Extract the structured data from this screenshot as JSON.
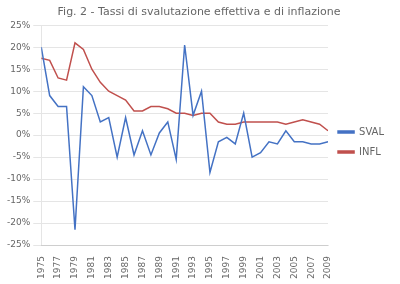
{
  "chart_data": {
    "type": "line",
    "title": "Fig. 2 - Tassi di svalutazione effettiva e di inflazione",
    "x": [
      1975,
      1976,
      1977,
      1978,
      1979,
      1980,
      1981,
      1982,
      1983,
      1984,
      1985,
      1986,
      1987,
      1988,
      1989,
      1990,
      1991,
      1992,
      1993,
      1994,
      1995,
      1996,
      1997,
      1998,
      1999,
      2000,
      2001,
      2002,
      2003,
      2004,
      2005,
      2006,
      2007,
      2008,
      2009
    ],
    "series": [
      {
        "name": "SVAL",
        "color": "#4472C4",
        "values": [
          20.0,
          9.0,
          6.5,
          6.5,
          -21.5,
          11.0,
          9.0,
          3.0,
          4.0,
          -5.0,
          4.0,
          -4.5,
          1.0,
          -4.5,
          0.5,
          3.0,
          -5.5,
          20.5,
          4.5,
          10.0,
          -8.5,
          -1.5,
          -0.5,
          -2.0,
          5.0,
          -5.0,
          -4.0,
          -1.5,
          -2.0,
          1.0,
          -1.5,
          -1.5,
          -2.0,
          -2.0,
          -1.5
        ]
      },
      {
        "name": "INFL",
        "color": "#C0504D",
        "values": [
          17.5,
          17.0,
          13.0,
          12.5,
          21.0,
          19.5,
          15.0,
          12.0,
          10.0,
          9.0,
          8.0,
          5.5,
          5.5,
          6.5,
          6.5,
          6.0,
          5.0,
          5.0,
          4.5,
          5.0,
          5.0,
          3.0,
          2.5,
          2.5,
          3.0,
          3.0,
          3.0,
          3.0,
          3.0,
          2.5,
          3.0,
          3.5,
          3.0,
          2.5,
          1.0
        ]
      }
    ],
    "xlim": [
      1975,
      2009
    ],
    "xticks": [
      1975,
      1977,
      1979,
      1981,
      1983,
      1985,
      1987,
      1989,
      1991,
      1993,
      1995,
      1997,
      1999,
      2001,
      2003,
      2005,
      2007,
      2009
    ],
    "ylim": [
      -25,
      25
    ],
    "yticks": [
      {
        "value": -25,
        "label": "-25%"
      },
      {
        "value": -20,
        "label": "-20%"
      },
      {
        "value": -15,
        "label": "-15%"
      },
      {
        "value": -10,
        "label": "-10%"
      },
      {
        "value": -5,
        "label": "-5%"
      },
      {
        "value": 0,
        "label": "0%"
      },
      {
        "value": 5,
        "label": "5%"
      },
      {
        "value": 10,
        "label": "10%"
      },
      {
        "value": 15,
        "label": "15%"
      },
      {
        "value": 20,
        "label": "20%"
      },
      {
        "value": 25,
        "label": "25%"
      }
    ],
    "grid": "y",
    "legend": "right"
  }
}
